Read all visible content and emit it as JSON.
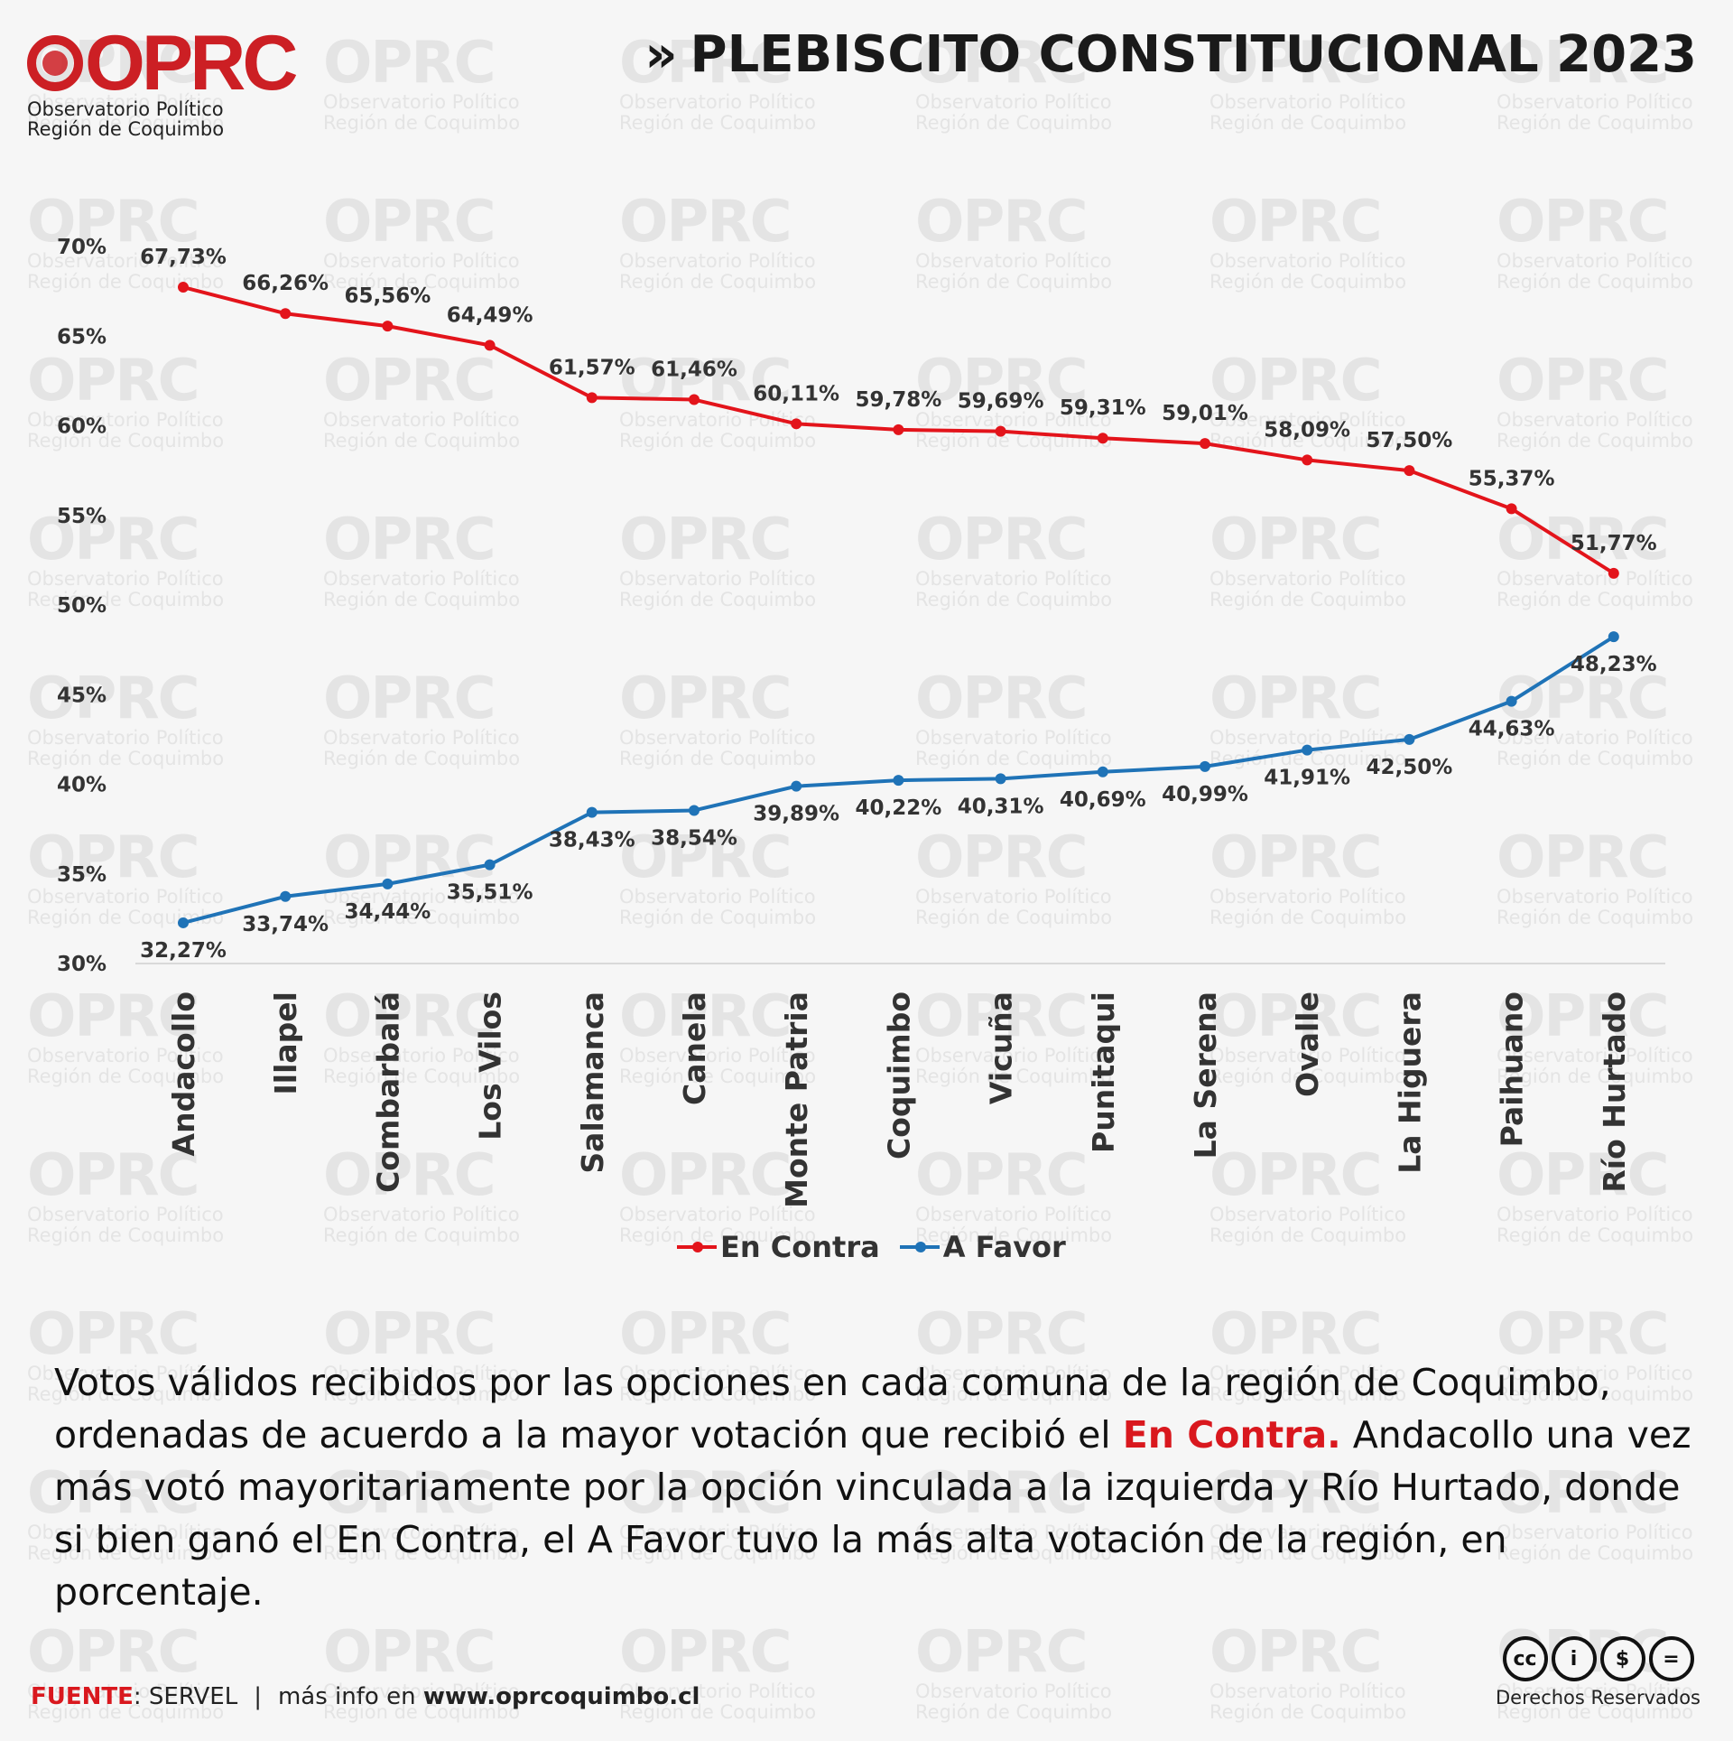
{
  "brand": {
    "logo_text": "OPRC",
    "subtitle_line1": "Observatorio Político",
    "subtitle_line2": "Región de Coquimbo"
  },
  "header": {
    "chevron": "»",
    "title": "PLEBISCITO CONSTITUCIONAL 2023"
  },
  "chart_data": {
    "type": "line",
    "categories": [
      "Andacollo",
      "Illapel",
      "Combarbalá",
      "Los Vilos",
      "Salamanca",
      "Canela",
      "Monte Patria",
      "Coquimbo",
      "Vicuña",
      "Punitaqui",
      "La Serena",
      "Ovalle",
      "La Higuera",
      "Paihuano",
      "Río Hurtado"
    ],
    "series": [
      {
        "name": "En Contra",
        "color": "#e3141b",
        "values": [
          67.73,
          66.26,
          65.56,
          64.49,
          61.57,
          61.46,
          60.11,
          59.78,
          59.69,
          59.31,
          59.01,
          58.09,
          57.5,
          55.37,
          51.77
        ],
        "labels": [
          "67,73%",
          "66,26%",
          "65,56%",
          "64,49%",
          "61,57%",
          "61,46%",
          "60,11%",
          "59,78%",
          "59,69%",
          "59,31%",
          "59,01%",
          "58,09%",
          "57,50%",
          "55,37%",
          "51,77%"
        ]
      },
      {
        "name": "A Favor",
        "color": "#1f73b7",
        "values": [
          32.27,
          33.74,
          34.44,
          35.51,
          38.43,
          38.54,
          39.89,
          40.22,
          40.31,
          40.69,
          40.99,
          41.91,
          42.5,
          44.63,
          48.23
        ],
        "labels": [
          "32,27%",
          "33,74%",
          "34,44%",
          "35,51%",
          "38,43%",
          "38,54%",
          "39,89%",
          "40,22%",
          "40,31%",
          "40,69%",
          "40,99%",
          "41,91%",
          "42,50%",
          "44,63%",
          "48,23%"
        ]
      }
    ],
    "ylim": [
      30,
      70
    ],
    "yticks": [
      30,
      35,
      40,
      45,
      50,
      55,
      60,
      65,
      70
    ],
    "ytick_labels": [
      "30%",
      "35%",
      "40%",
      "45%",
      "50%",
      "55%",
      "60%",
      "65%",
      "70%"
    ],
    "grid": false,
    "legend_position": "bottom-center"
  },
  "description": {
    "part1": "Votos válidos recibidos por las opciones en cada comuna de la región de Coquimbo, ordenadas de acuerdo a la mayor votación que recibió el ",
    "highlight": "En Contra.",
    "part2": " Andacollo una vez más votó mayoritariamente por la opción vinculada a la izquierda y Río Hurtado, donde si bien ganó el En Contra, el A Favor tuvo la más alta votación de la región, en porcentaje."
  },
  "footer": {
    "source_key": "FUENTE",
    "source_value": ": SERVEL",
    "separator": "|",
    "more_info": "más info en ",
    "url": "www.oprcoquimbo.cl"
  },
  "license": {
    "icons": [
      "cc-icon",
      "by-icon",
      "nc-icon",
      "nd-icon"
    ],
    "glyphs": [
      "cc",
      "i",
      "$",
      "="
    ],
    "text": "Derechos Reservados"
  }
}
